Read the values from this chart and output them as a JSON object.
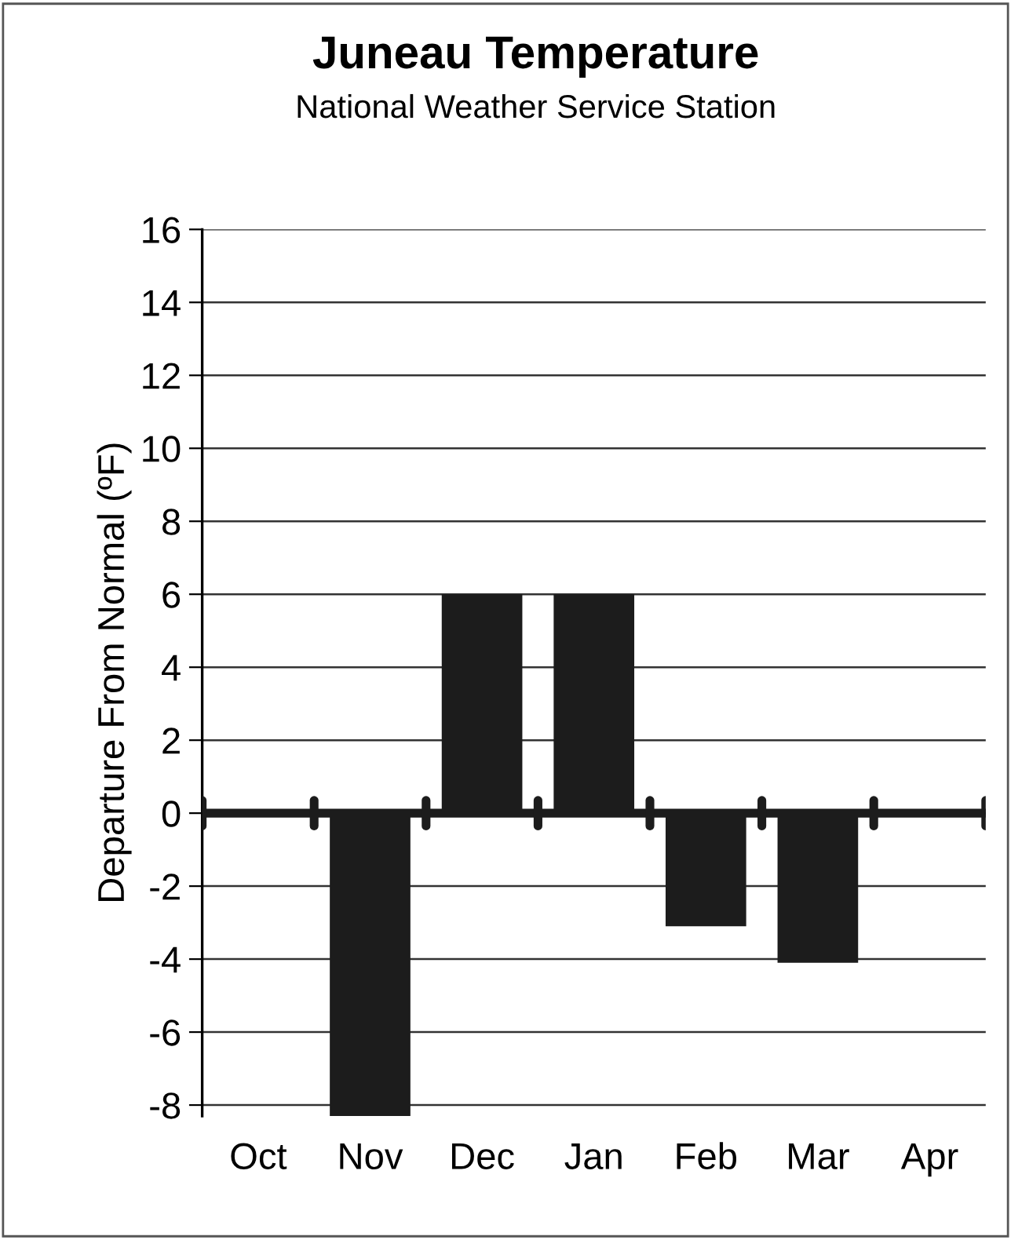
{
  "chart_data": {
    "type": "bar",
    "title": "Juneau Temperature",
    "subtitle": "National Weather Service Station",
    "ylabel": "Departure From Normal (ºF)",
    "categories": [
      "Oct",
      "Nov",
      "Dec",
      "Jan",
      "Feb",
      "Mar",
      "Apr"
    ],
    "values": [
      null,
      -8.3,
      6,
      6,
      -3.1,
      -4.1,
      null
    ],
    "color": "#1c1c1c",
    "ylim": [
      -8.3,
      16
    ],
    "yticks": [
      -8,
      -6,
      -4,
      -2,
      0,
      2,
      4,
      6,
      8,
      10,
      12,
      14,
      16
    ],
    "grid": "y",
    "legend": false
  }
}
